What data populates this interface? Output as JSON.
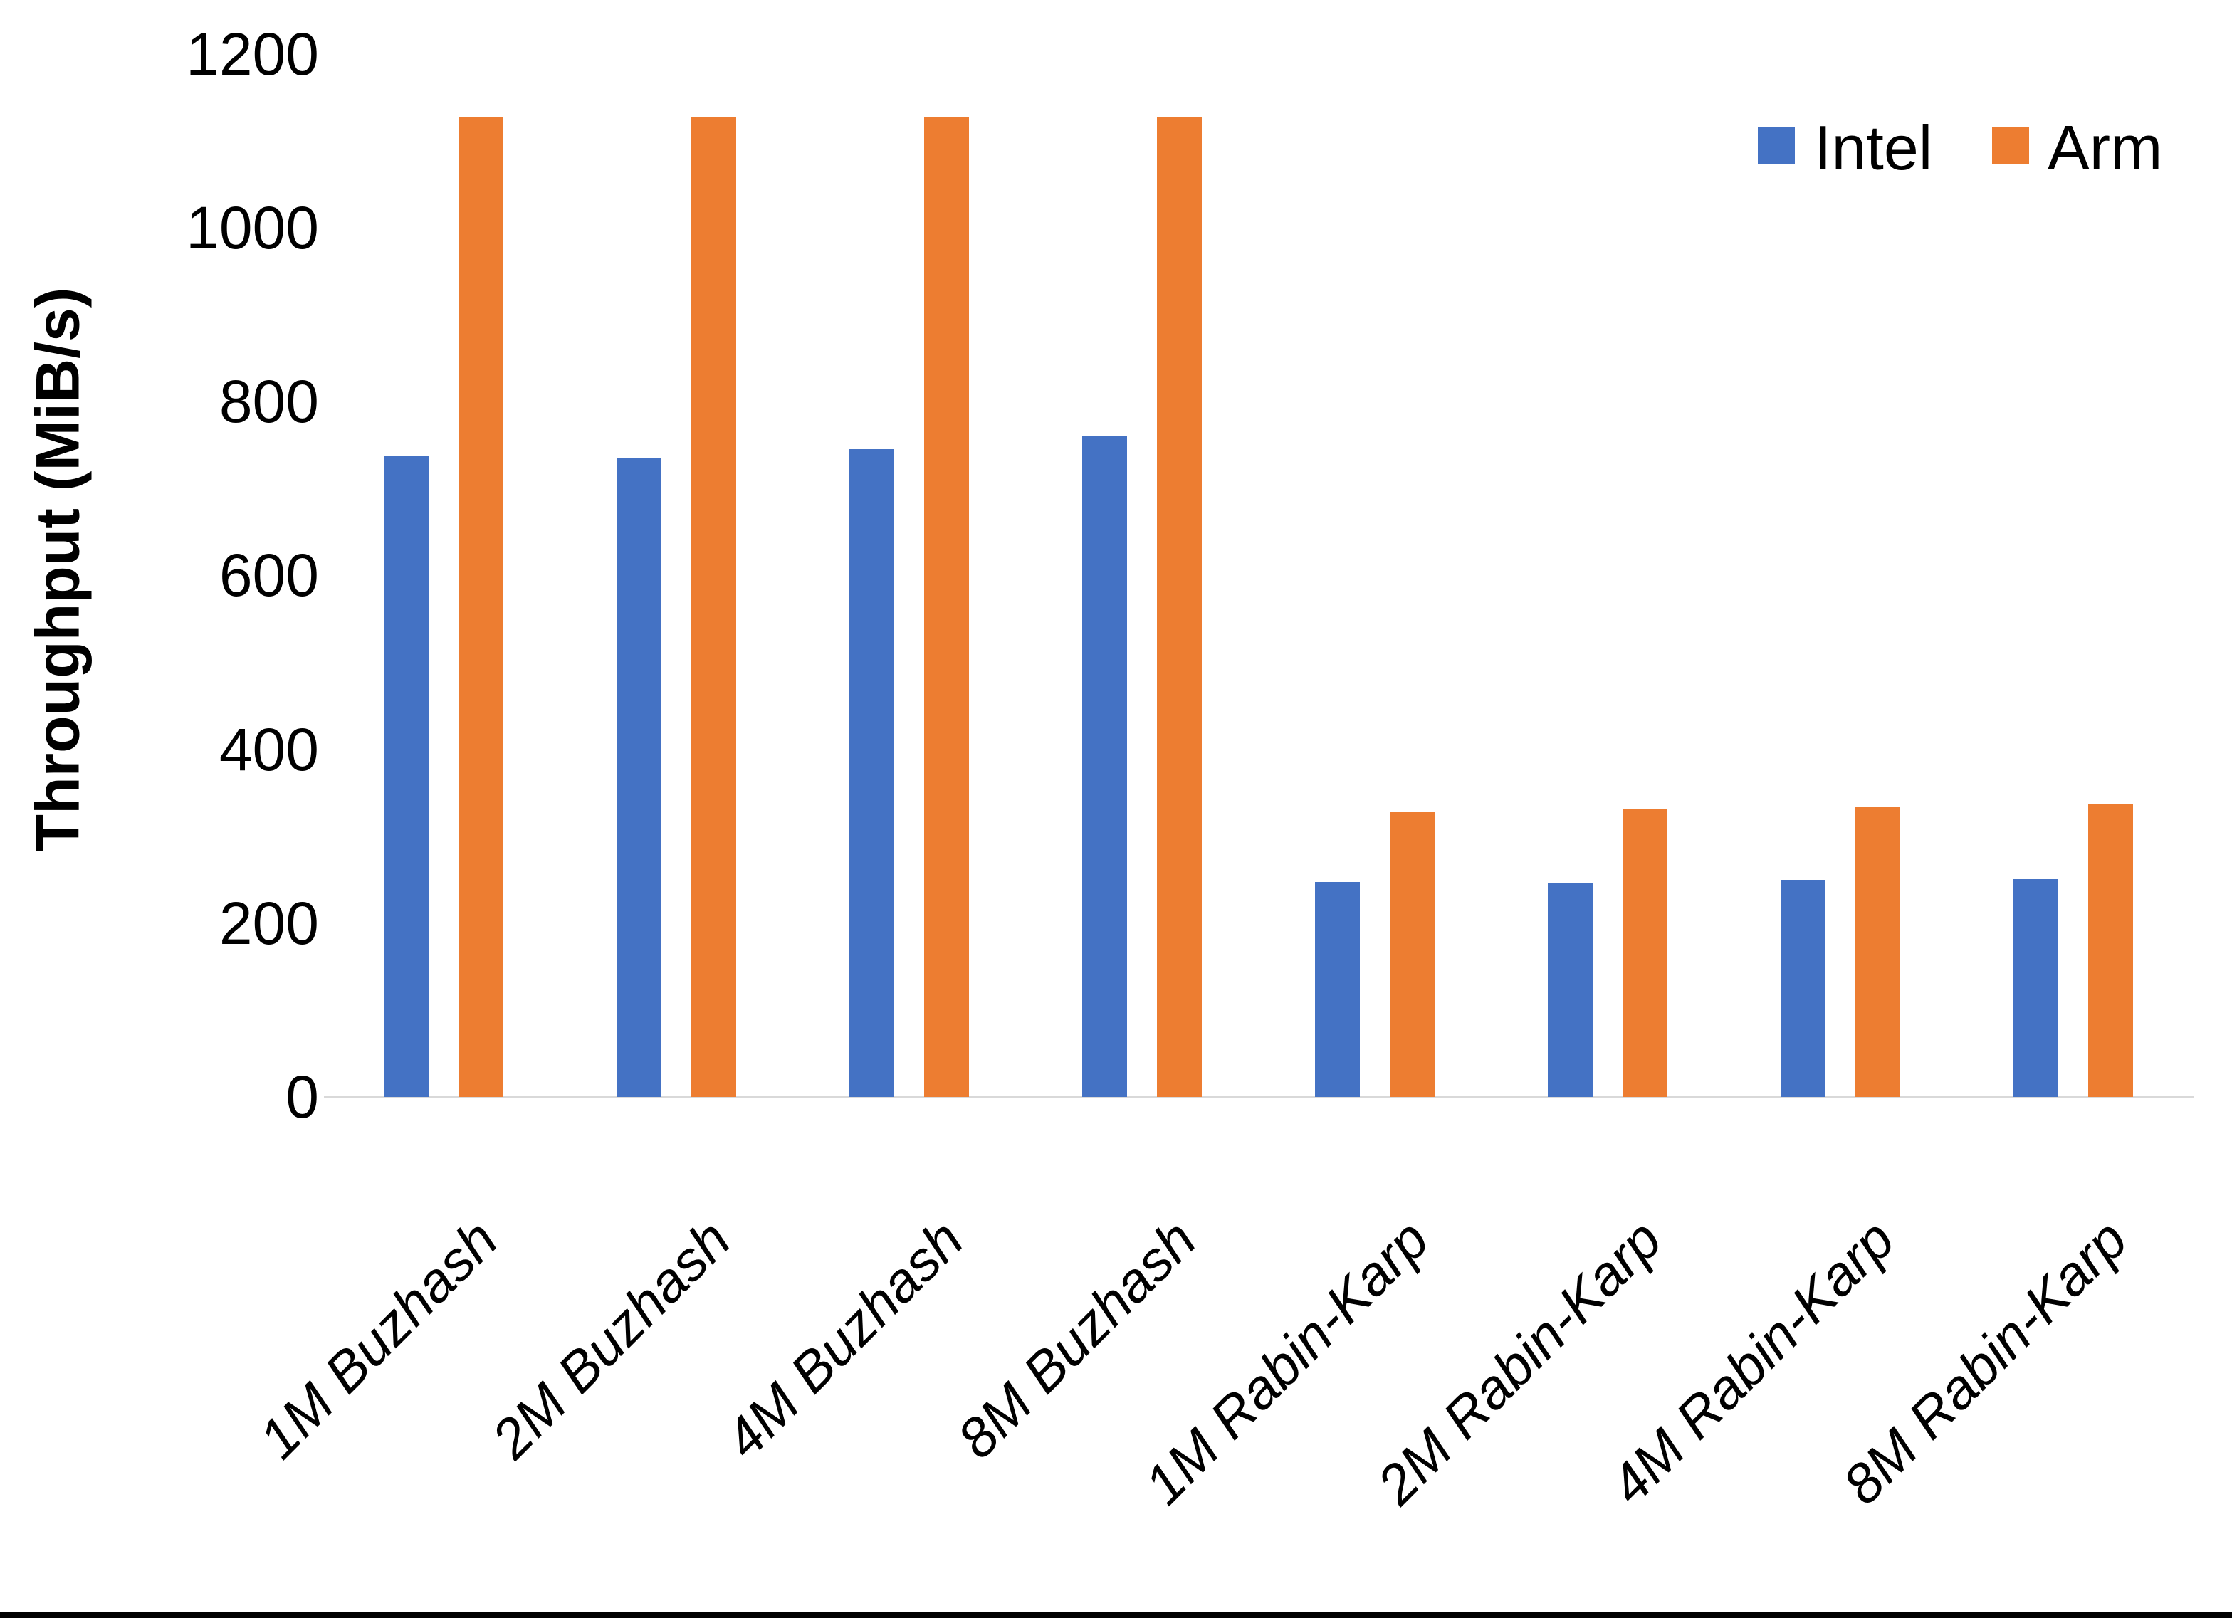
{
  "chart_data": {
    "type": "bar",
    "title": "",
    "xlabel": "",
    "ylabel": "Throughput (MiB/s)",
    "ylim": [
      0,
      1200
    ],
    "ytick_step": 200,
    "yticks": [
      0,
      200,
      400,
      600,
      800,
      1000,
      1200
    ],
    "grid": false,
    "legend_position": "top-right",
    "axis_line_color": "#d9d9d9",
    "categories": [
      "1M Buzhash",
      "2M Buzhash",
      "4M Buzhash",
      "8M Buzhash",
      "1M Rabin-Karp",
      "2M Rabin-Karp",
      "4M Rabin-Karp",
      "8M Rabin-Karp"
    ],
    "series": [
      {
        "name": "Intel",
        "color": "#4472c4",
        "values": [
          737,
          735,
          745,
          760,
          247,
          246,
          250,
          251
        ]
      },
      {
        "name": "Arm",
        "color": "#ed7d31",
        "values": [
          1127,
          1127,
          1127,
          1127,
          328,
          331,
          334,
          337
        ]
      }
    ]
  }
}
